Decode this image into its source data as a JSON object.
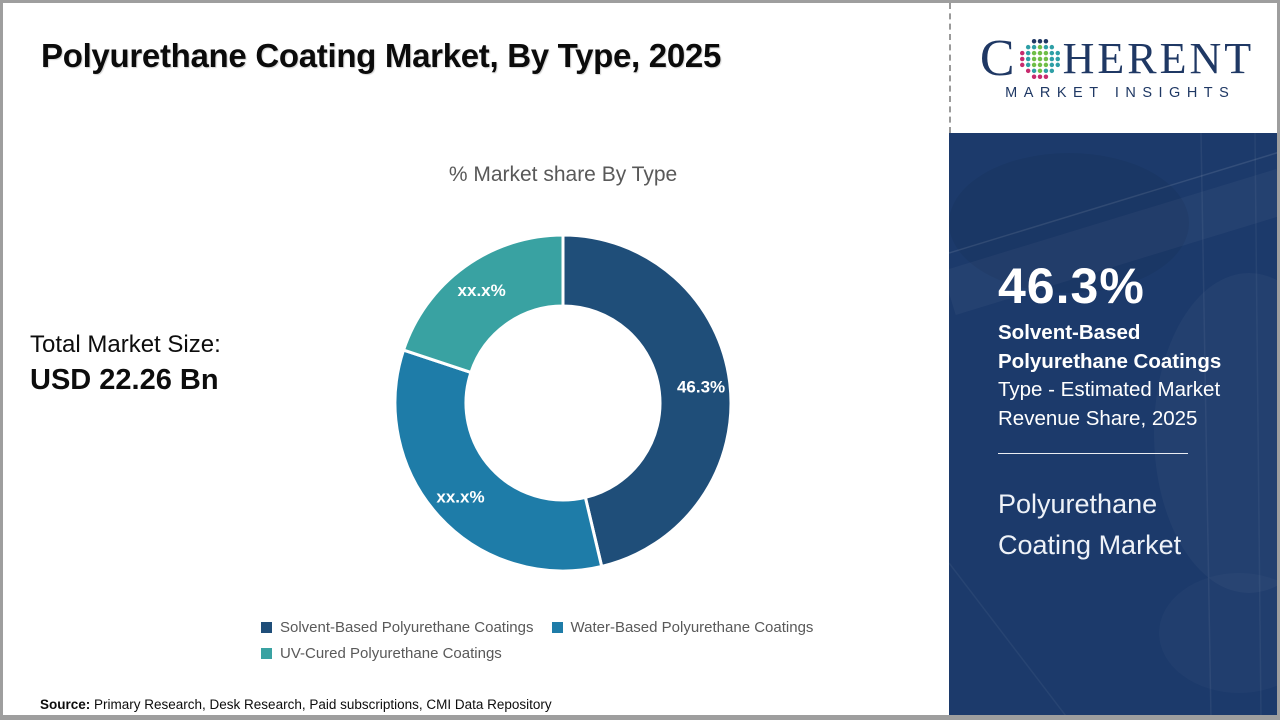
{
  "header": {
    "title": "Polyurethane Coating Market, By Type, 2025"
  },
  "logo": {
    "brand_first_letter": "C",
    "brand_rest": "HERENT",
    "subtitle": "MARKET INSIGHTS",
    "brand_color": "#1F3864",
    "globe_dot_colors": {
      "teal": "#2E9FA6",
      "green": "#6FBE47",
      "magenta": "#C72B6E",
      "navy": "#1F3864"
    }
  },
  "total_market": {
    "label": "Total Market Size:",
    "value": "USD 22.26 Bn"
  },
  "chart_data": {
    "type": "pie",
    "subtype": "donut",
    "title": "% Market share By Type",
    "hole_ratio": 0.58,
    "start_angle_deg": 0,
    "direction": "clockwise",
    "legend_position": "bottom",
    "slices": [
      {
        "name": "Solvent-Based Polyurethane Coatings",
        "value": 46.3,
        "display_label": "46.3%",
        "color": "#1F4E79"
      },
      {
        "name": "Water-Based Polyurethane Coatings",
        "value": 33.8,
        "display_label": "xx.x%",
        "color": "#1E7CA8"
      },
      {
        "name": "UV-Cured Polyurethane Coatings",
        "value": 19.9,
        "display_label": "xx.x%",
        "color": "#39A2A2"
      }
    ]
  },
  "sidebar": {
    "background_color": "#1C3A6B",
    "stat_value": "46.3%",
    "stat_label_bold": "Solvent-Based Polyurethane Coatings",
    "stat_label_regular": "Type - Estimated Market Revenue Share, 2025",
    "market_name": "Polyurethane Coating Market"
  },
  "source": {
    "label": "Source:",
    "text": " Primary Research, Desk Research, Paid subscriptions, CMI Data Repository"
  }
}
